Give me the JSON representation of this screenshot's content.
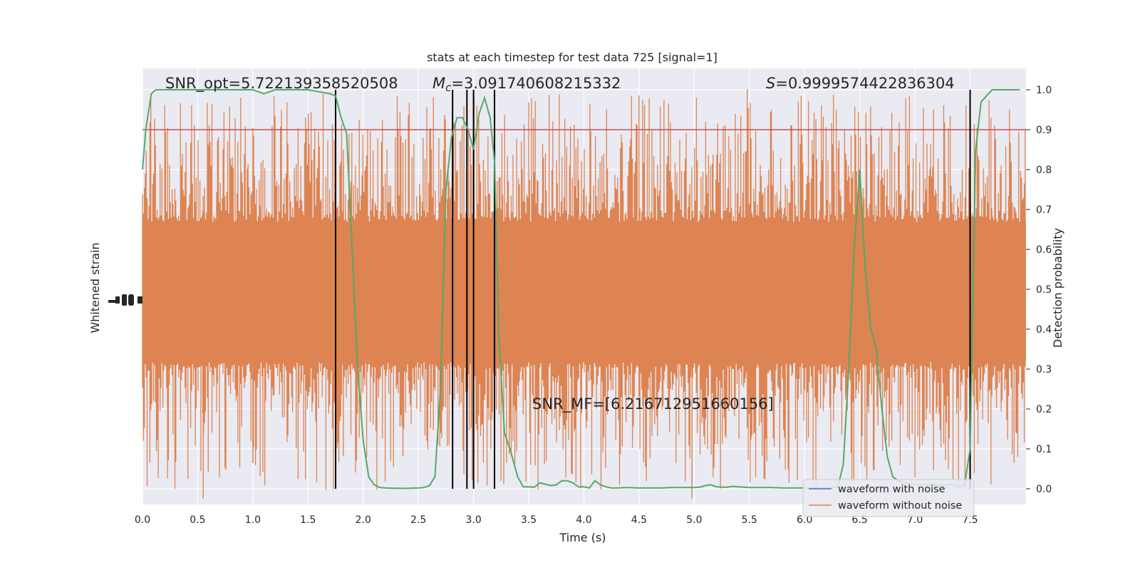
{
  "chart_data": {
    "type": "line",
    "title": "stats at each timestep for test data 725 [signal=1]",
    "xlabel": "Time (s)",
    "ylabel_left": "Whitened strain",
    "ylabel_right": "Detection probability",
    "xlim": [
      0.0,
      8.0
    ],
    "ylim_right": [
      -0.05,
      1.05
    ],
    "x_ticks": [
      "0.0",
      "0.5",
      "1.0",
      "1.5",
      "2.0",
      "2.5",
      "3.0",
      "3.5",
      "4.0",
      "4.5",
      "5.0",
      "5.5",
      "6.0",
      "6.5",
      "7.0",
      "7.5"
    ],
    "y_ticks_right": [
      "0.0",
      "0.1",
      "0.2",
      "0.3",
      "0.4",
      "0.5",
      "0.6",
      "0.7",
      "0.8",
      "0.9",
      "1.0"
    ],
    "grid": true,
    "annotations": {
      "snr_opt": "SNR_opt=5.722139358520508",
      "mc_symbol": "M",
      "mc_sub": "c",
      "mc_value": "=3.091740608215332",
      "s_symbol": "S",
      "s_value": "=0.9999574422836304",
      "snr_mf": "SNR_MF=[6.216712951660156]"
    },
    "threshold": {
      "value": 0.9,
      "color": "#c44e52"
    },
    "vertical_lines_x": [
      1.75,
      2.81,
      2.94,
      3.0,
      3.19,
      7.5
    ],
    "series": [
      {
        "name": "waveform with noise",
        "color": "#4c72b0",
        "values": []
      },
      {
        "name": "waveform without noise",
        "color": "#dd8452",
        "values": []
      },
      {
        "color": "#55a868",
        "x": [
          0.0,
          0.03,
          0.08,
          0.12,
          0.2,
          0.3,
          0.4,
          0.5,
          0.6,
          0.7,
          0.8,
          0.9,
          1.0,
          1.1,
          1.2,
          1.3,
          1.4,
          1.5,
          1.6,
          1.7,
          1.75,
          1.8,
          1.85,
          1.9,
          1.95,
          2.0,
          2.05,
          2.1,
          2.15,
          2.2,
          2.3,
          2.4,
          2.5,
          2.55,
          2.6,
          2.65,
          2.7,
          2.75,
          2.8,
          2.85,
          2.9,
          2.95,
          3.0,
          3.05,
          3.1,
          3.15,
          3.19,
          3.23,
          3.28,
          3.33,
          3.4,
          3.45,
          3.5,
          3.55,
          3.6,
          3.7,
          3.75,
          3.8,
          3.85,
          3.9,
          3.95,
          4.0,
          4.05,
          4.1,
          4.15,
          4.2,
          4.25,
          4.3,
          4.4,
          4.5,
          4.6,
          4.7,
          4.8,
          4.9,
          5.0,
          5.05,
          5.1,
          5.15,
          5.2,
          5.25,
          5.3,
          5.35,
          5.4,
          5.5,
          5.6,
          5.7,
          5.8,
          5.9,
          6.0,
          6.1,
          6.2,
          6.3,
          6.35,
          6.4,
          6.45,
          6.5,
          6.55,
          6.6,
          6.65,
          6.7,
          6.75,
          6.8,
          6.85,
          6.9,
          7.0,
          7.1,
          7.2,
          7.3,
          7.35,
          7.4,
          7.45,
          7.5,
          7.55,
          7.6,
          7.7,
          7.8,
          7.95
        ],
        "y": [
          0.8,
          0.9,
          0.99,
          1.0,
          1.0,
          1.0,
          1.0,
          1.0,
          1.0,
          1.0,
          1.0,
          1.0,
          1.0,
          0.99,
          1.0,
          1.0,
          1.0,
          1.0,
          0.995,
          0.99,
          0.985,
          0.93,
          0.89,
          0.6,
          0.3,
          0.12,
          0.03,
          0.01,
          0.003,
          0.002,
          0.001,
          0.001,
          0.002,
          0.003,
          0.008,
          0.03,
          0.25,
          0.75,
          0.88,
          0.93,
          0.93,
          0.9,
          0.85,
          0.94,
          0.98,
          0.93,
          0.82,
          0.38,
          0.14,
          0.1,
          0.03,
          0.005,
          0.005,
          0.004,
          0.015,
          0.008,
          0.01,
          0.02,
          0.02,
          0.015,
          0.005,
          0.005,
          0.002,
          0.02,
          0.01,
          0.005,
          0.002,
          0.002,
          0.003,
          0.002,
          0.002,
          0.002,
          0.003,
          0.003,
          0.003,
          0.004,
          0.008,
          0.01,
          0.005,
          0.004,
          0.004,
          0.006,
          0.005,
          0.003,
          0.003,
          0.003,
          0.002,
          0.002,
          0.002,
          0.002,
          0.002,
          0.004,
          0.06,
          0.3,
          0.6,
          0.8,
          0.55,
          0.4,
          0.35,
          0.2,
          0.08,
          0.03,
          0.02,
          0.015,
          0.01,
          0.01,
          0.01,
          0.01,
          0.01,
          0.005,
          0.01,
          0.1,
          0.85,
          0.97,
          1.0,
          1.0,
          1.0
        ]
      }
    ]
  }
}
